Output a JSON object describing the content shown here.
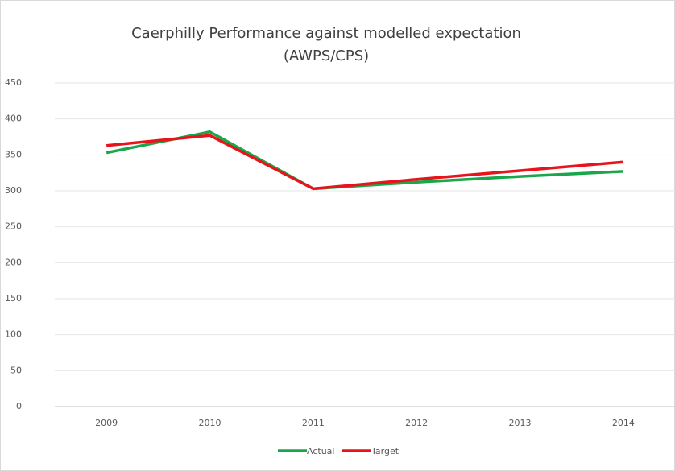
{
  "chart_data": {
    "type": "line",
    "title": [
      "Caerphilly Performance against modelled expectation",
      "(AWPS/CPS)"
    ],
    "categories": [
      "2009",
      "2010",
      "2011",
      "2012",
      "2013",
      "2014"
    ],
    "series": [
      {
        "name": "Actual",
        "color": "#1aa64a",
        "values": [
          353,
          382,
          303,
          312,
          320,
          327
        ]
      },
      {
        "name": "Target",
        "color": "#e8131b",
        "values": [
          363,
          377,
          303,
          316,
          328,
          340
        ]
      }
    ],
    "ylim": [
      0,
      450
    ],
    "yticks": [
      0,
      50,
      100,
      150,
      200,
      250,
      300,
      350,
      400,
      450
    ],
    "grid": true,
    "legend": "bottom"
  }
}
